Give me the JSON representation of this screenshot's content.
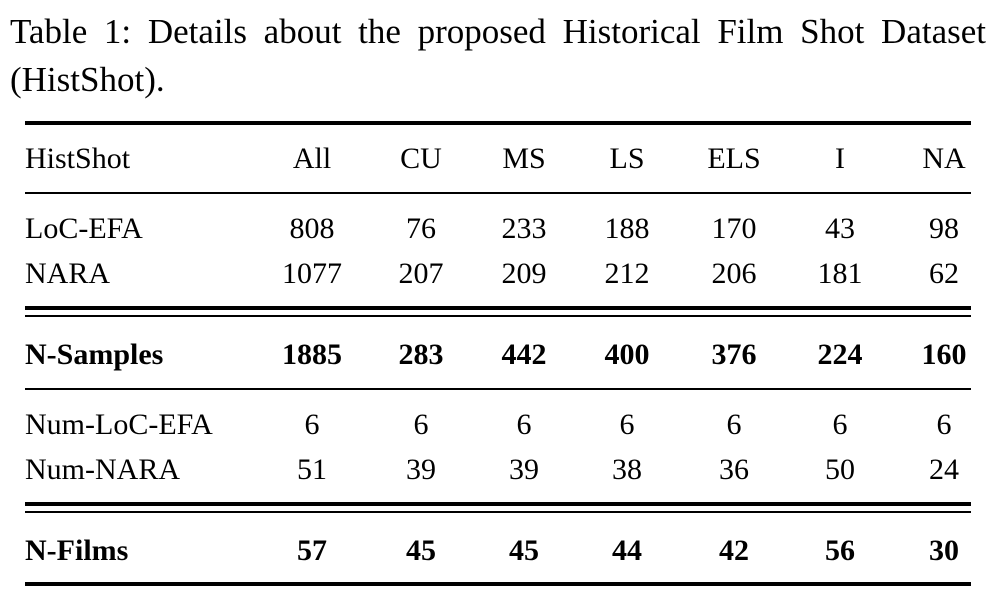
{
  "caption": "Table 1: Details about the proposed Historical Film Shot Dataset (HistShot).",
  "table": {
    "header": [
      "HistShot",
      "All",
      "CU",
      "MS",
      "LS",
      "ELS",
      "I",
      "NA"
    ],
    "rows": [
      {
        "label": "LoC-EFA",
        "values": [
          "808",
          "76",
          "233",
          "188",
          "170",
          "43",
          "98"
        ],
        "bold": false
      },
      {
        "label": "NARA",
        "values": [
          "1077",
          "207",
          "209",
          "212",
          "206",
          "181",
          "62"
        ],
        "bold": false
      },
      {
        "label": "N-Samples",
        "values": [
          "1885",
          "283",
          "442",
          "400",
          "376",
          "224",
          "160"
        ],
        "bold": true
      },
      {
        "label": "Num-LoC-EFA",
        "values": [
          "6",
          "6",
          "6",
          "6",
          "6",
          "6",
          "6"
        ],
        "bold": false
      },
      {
        "label": "Num-NARA",
        "values": [
          "51",
          "39",
          "39",
          "38",
          "36",
          "50",
          "24"
        ],
        "bold": false
      },
      {
        "label": "N-Films",
        "values": [
          "57",
          "45",
          "45",
          "44",
          "42",
          "56",
          "30"
        ],
        "bold": true
      }
    ]
  }
}
